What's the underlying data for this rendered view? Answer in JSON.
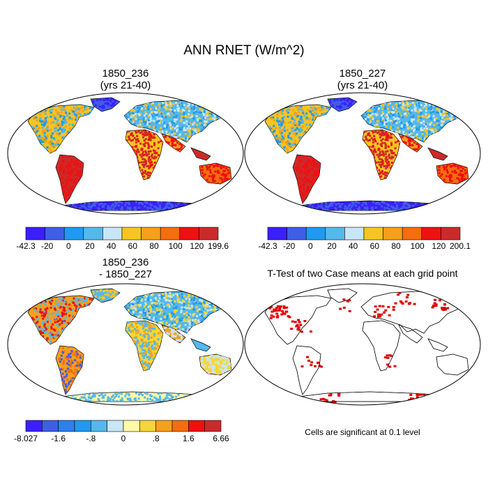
{
  "main_title": "ANN RNET (W/m^2)",
  "panels": [
    {
      "id": "p1",
      "title": "1850_236",
      "subtitle": "(yrs 21-40)"
    },
    {
      "id": "p2",
      "title": "1850_227",
      "subtitle": "(yrs 21-40)"
    },
    {
      "id": "p3",
      "title": "1850_236",
      "subtitle": "- 1850_227"
    },
    {
      "id": "p4",
      "title": "T-Test of two Case means at each grid point",
      "subtitle": ""
    }
  ],
  "colorbars": {
    "cb1": {
      "colors": [
        "#3c1fff",
        "#3e5ee8",
        "#1f9af0",
        "#55b8ec",
        "#c8e6f5",
        "#f7c521",
        "#f7a01a",
        "#f56d0d",
        "#ef1010",
        "#cc2a2a"
      ],
      "labels": [
        "-42.3",
        "-20",
        "0",
        "20",
        "40",
        "60",
        "80",
        "100",
        "120",
        "199.6"
      ]
    },
    "cb2": {
      "colors": [
        "#3c1fff",
        "#3e5ee8",
        "#1f9af0",
        "#55b8ec",
        "#c8e6f5",
        "#f7c521",
        "#f7a01a",
        "#f56d0d",
        "#ef1010",
        "#cc2a2a"
      ],
      "labels": [
        "-42.3",
        "-20",
        "0",
        "20",
        "40",
        "60",
        "80",
        "100",
        "120",
        "200.1"
      ]
    },
    "cb3": {
      "colors": [
        "#3c1fff",
        "#3e5ee8",
        "#2f7ef0",
        "#1f9af0",
        "#55b8ec",
        "#c8e6f5",
        "#fff9a8",
        "#f7d53a",
        "#f7a01a",
        "#f56d0d",
        "#ef1010",
        "#cc2a2a"
      ],
      "labels": [
        "-8.027",
        "-1.6",
        "-.8",
        "0",
        ".8",
        "1.6",
        "6.66"
      ]
    }
  },
  "significance_note": "Cells are significant at 0.1 level",
  "colors": {
    "stipple": "#e00000",
    "coast": "#000000"
  }
}
